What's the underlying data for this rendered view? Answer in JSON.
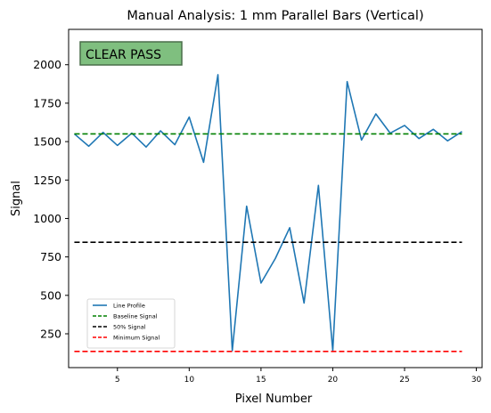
{
  "chart_data": {
    "type": "line",
    "title": "Manual Analysis: 1 mm Parallel Bars (Vertical)",
    "xlabel": "Pixel Number",
    "ylabel": "Signal",
    "xlim": [
      1.6,
      30.4
    ],
    "ylim": [
      30,
      2230
    ],
    "xticks": [
      5,
      10,
      15,
      20,
      25,
      30
    ],
    "yticks": [
      250,
      500,
      750,
      1000,
      1250,
      1500,
      1750,
      2000
    ],
    "grid": false,
    "legend_position": "lower-left",
    "annotation": {
      "text": "CLEAR PASS",
      "position": "top-left",
      "fill": "#7fbf7f",
      "border": "#4a6e4a"
    },
    "series": [
      {
        "name": "Line Profile",
        "style": "solid",
        "color": "#1f77b4",
        "x": [
          2,
          3,
          4,
          5,
          6,
          7,
          8,
          9,
          10,
          11,
          12,
          13,
          14,
          15,
          16,
          17,
          18,
          19,
          20,
          21,
          22,
          23,
          24,
          25,
          26,
          27,
          28,
          29
        ],
        "y": [
          1550,
          1470,
          1560,
          1475,
          1555,
          1465,
          1570,
          1480,
          1660,
          1365,
          1935,
          140,
          1080,
          580,
          740,
          940,
          450,
          1215,
          140,
          1890,
          1510,
          1680,
          1555,
          1605,
          1520,
          1580,
          1505,
          1565
        ]
      },
      {
        "name": "Baseline Signal",
        "style": "dashed",
        "color": "#008000",
        "x": [
          2,
          29
        ],
        "y": [
          1550,
          1550
        ]
      },
      {
        "name": "50% Signal",
        "style": "dashed",
        "color": "#000000",
        "x": [
          2,
          29
        ],
        "y": [
          845,
          845
        ]
      },
      {
        "name": "Minimum Signal",
        "style": "dashed",
        "color": "#ff0000",
        "x": [
          2,
          29
        ],
        "y": [
          135,
          135
        ]
      }
    ]
  }
}
